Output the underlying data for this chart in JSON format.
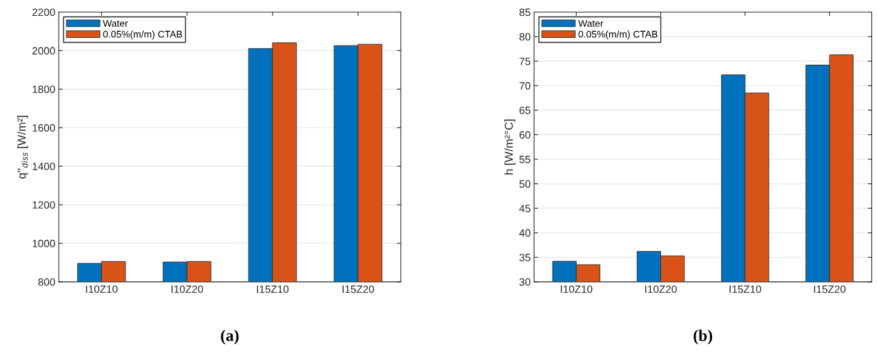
{
  "chart_data": [
    {
      "type": "bar",
      "categories": [
        "I10Z10",
        "I10Z20",
        "I15Z10",
        "I15Z20"
      ],
      "ylabel": "q''$_{diss}$ [W/m²]",
      "ylim": [
        800,
        2200
      ],
      "yticks": [
        800,
        1000,
        1200,
        1400,
        1600,
        1800,
        2000,
        2200
      ],
      "grid": "y",
      "legend": "top left",
      "annotations": [
        "(a)"
      ],
      "series": [
        {
          "name": "Water",
          "color": "#0072bd",
          "values": [
            896,
            903,
            2011,
            2026
          ]
        },
        {
          "name": "0.05%(m/m) CTAB",
          "color": "#d95319",
          "values": [
            906,
            906,
            2041,
            2033
          ]
        }
      ]
    },
    {
      "type": "bar",
      "categories": [
        "I10Z10",
        "I10Z20",
        "I15Z10",
        "I15Z20"
      ],
      "ylabel": "h [W/m²°C]",
      "ylim": [
        30,
        85
      ],
      "yticks": [
        30,
        35,
        40,
        45,
        50,
        55,
        60,
        65,
        70,
        75,
        80,
        85
      ],
      "grid": "y",
      "legend": "top left",
      "annotations": [
        "(b)"
      ],
      "series": [
        {
          "name": "Water",
          "color": "#0072bd",
          "values": [
            34.2,
            36.2,
            72.2,
            74.2
          ]
        },
        {
          "name": "0.05%(m/m) CTAB",
          "color": "#d95319",
          "values": [
            33.5,
            35.3,
            68.5,
            76.3
          ]
        }
      ]
    }
  ]
}
